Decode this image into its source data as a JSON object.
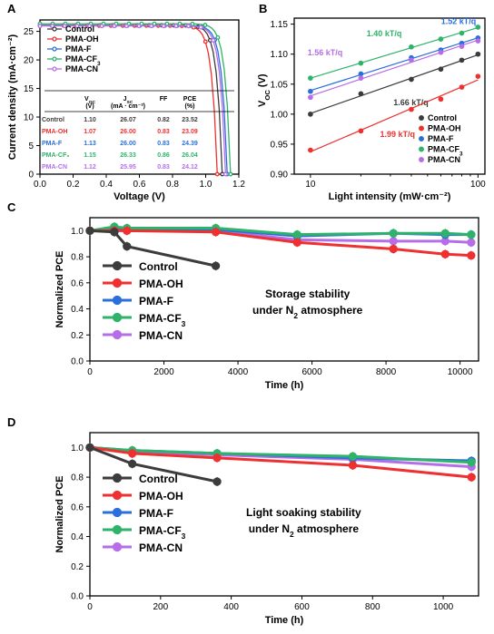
{
  "colors": {
    "Control": "#3c3c3c",
    "PMA-OH": "#ee3030",
    "PMA-F": "#2a6fdc",
    "PMA-CF3": "#2fb36a",
    "PMA-CN": "#b56ee8"
  },
  "chart_data": [
    {
      "panel": "A",
      "type": "line",
      "xlabel": "Voltage (V)",
      "ylabel": "Current density (mA·cm⁻²)",
      "xlim": [
        0.0,
        1.2
      ],
      "ylim": [
        0,
        27
      ],
      "xticks": [
        "0.0",
        "0.2",
        "0.4",
        "0.6",
        "0.8",
        "1.0",
        "1.2"
      ],
      "yticks": [
        "0",
        "5",
        "10",
        "15",
        "20",
        "25"
      ],
      "legend_position": "top-left",
      "series": [
        {
          "name": "Control",
          "voc": 1.1,
          "jsc": 26.07
        },
        {
          "name": "PMA-OH",
          "voc": 1.07,
          "jsc": 26.0
        },
        {
          "name": "PMA-F",
          "voc": 1.13,
          "jsc": 26.0
        },
        {
          "name": "PMA-CF3",
          "voc": 1.15,
          "jsc": 26.33
        },
        {
          "name": "PMA-CN",
          "voc": 1.12,
          "jsc": 25.95
        }
      ],
      "table": {
        "headers": [
          "V_OC (V)",
          "J_SC (mA · cm⁻²)",
          "FF",
          "PCE (%)"
        ],
        "rows": [
          {
            "name": "Control",
            "voc": "1.10",
            "jsc": "26.07",
            "ff": "0.82",
            "pce": "23.52"
          },
          {
            "name": "PMA-OH",
            "voc": "1.07",
            "jsc": "26.00",
            "ff": "0.83",
            "pce": "23.09"
          },
          {
            "name": "PMA-F",
            "voc": "1.13",
            "jsc": "26.00",
            "ff": "0.83",
            "pce": "24.39"
          },
          {
            "name": "PMA-CF₃",
            "voc": "1.15",
            "jsc": "26.33",
            "ff": "0.86",
            "pce": "26.04"
          },
          {
            "name": "PMA-CN",
            "voc": "1.12",
            "jsc": "25.95",
            "ff": "0.83",
            "pce": "24.12"
          }
        ]
      }
    },
    {
      "panel": "B",
      "type": "scatter",
      "xlabel": "Light intensity (mW·cm⁻²)",
      "ylabel": "V_OC (V)",
      "xscale": "log",
      "xlim": [
        8,
        110
      ],
      "ylim": [
        0.9,
        1.16
      ],
      "xticks": [
        "10",
        "100"
      ],
      "yticks": [
        "0.90",
        "0.95",
        "1.00",
        "1.05",
        "1.10",
        "1.15"
      ],
      "legend_position": "bottom-right",
      "x": [
        10,
        20,
        40,
        60,
        80,
        100
      ],
      "series": [
        {
          "name": "Control",
          "values": [
            1.0,
            1.034,
            1.058,
            1.075,
            1.09,
            1.1
          ],
          "slope_label": "1.66 kT/q"
        },
        {
          "name": "PMA-OH",
          "values": [
            0.94,
            0.972,
            1.008,
            1.025,
            1.045,
            1.063
          ],
          "slope_label": "1.99 kT/q"
        },
        {
          "name": "PMA-F",
          "values": [
            1.038,
            1.067,
            1.094,
            1.107,
            1.118,
            1.127
          ],
          "slope_label": "1.52 kT/q"
        },
        {
          "name": "PMA-CF3",
          "values": [
            1.06,
            1.085,
            1.112,
            1.125,
            1.135,
            1.145
          ],
          "slope_label": "1.40 kT/q"
        },
        {
          "name": "PMA-CN",
          "values": [
            1.028,
            1.06,
            1.09,
            1.103,
            1.113,
            1.122
          ],
          "slope_label": "1.56 kT/q"
        }
      ]
    },
    {
      "panel": "C",
      "type": "line",
      "xlabel": "Time (h)",
      "ylabel": "Normalized PCE",
      "xlim": [
        0,
        10500
      ],
      "ylim": [
        0,
        1.1
      ],
      "xticks": [
        "0",
        "2000",
        "4000",
        "6000",
        "8000",
        "10000"
      ],
      "yticks": [
        "0.0",
        "0.2",
        "0.4",
        "0.6",
        "0.8",
        "1.0"
      ],
      "legend_position": "middle-left",
      "annotation": [
        "Storage stability",
        "under N₂ atmosphere"
      ],
      "series": [
        {
          "name": "Control",
          "x": [
            0,
            660,
            1000,
            3400
          ],
          "values": [
            1.0,
            0.99,
            0.88,
            0.73
          ]
        },
        {
          "name": "PMA-OH",
          "x": [
            0,
            660,
            1000,
            3400,
            5600,
            8200,
            9600,
            10300
          ],
          "values": [
            1.0,
            1.0,
            1.0,
            0.99,
            0.91,
            0.86,
            0.82,
            0.81
          ]
        },
        {
          "name": "PMA-F",
          "x": [
            0,
            660,
            1000,
            3400,
            5600,
            8200,
            9600,
            10300
          ],
          "values": [
            1.0,
            1.02,
            1.01,
            1.01,
            0.96,
            0.98,
            0.97,
            0.97
          ]
        },
        {
          "name": "PMA-CF3",
          "x": [
            0,
            660,
            1000,
            3400,
            5600,
            8200,
            9600,
            10300
          ],
          "values": [
            1.0,
            1.03,
            1.02,
            1.02,
            0.97,
            0.98,
            0.98,
            0.97
          ]
        },
        {
          "name": "PMA-CN",
          "x": [
            0,
            660,
            1000,
            3400,
            5600,
            8200,
            9600,
            10300
          ],
          "values": [
            1.0,
            1.01,
            1.0,
            1.0,
            0.93,
            0.92,
            0.92,
            0.91
          ]
        }
      ]
    },
    {
      "panel": "D",
      "type": "line",
      "xlabel": "Time (h)",
      "ylabel": "Normalized PCE",
      "xlim": [
        0,
        1100
      ],
      "ylim": [
        0,
        1.1
      ],
      "xticks": [
        "0",
        "200",
        "400",
        "600",
        "800",
        "1000"
      ],
      "yticks": [
        "0.0",
        "0.2",
        "0.4",
        "0.6",
        "0.8",
        "1.0"
      ],
      "legend_position": "middle-left",
      "annotation": [
        "Light soaking stability",
        "under N₂ atmosphere"
      ],
      "series": [
        {
          "name": "Control",
          "x": [
            0,
            120,
            360
          ],
          "values": [
            1.0,
            0.89,
            0.77
          ]
        },
        {
          "name": "PMA-OH",
          "x": [
            0,
            120,
            360,
            744,
            1080
          ],
          "values": [
            1.0,
            0.96,
            0.93,
            0.88,
            0.8
          ]
        },
        {
          "name": "PMA-F",
          "x": [
            0,
            120,
            360,
            744,
            1080
          ],
          "values": [
            1.0,
            0.98,
            0.96,
            0.93,
            0.91
          ]
        },
        {
          "name": "PMA-CF3",
          "x": [
            0,
            120,
            360,
            744,
            1080
          ],
          "values": [
            1.0,
            0.98,
            0.96,
            0.94,
            0.9
          ]
        },
        {
          "name": "PMA-CN",
          "x": [
            0,
            120,
            360,
            744,
            1080
          ],
          "values": [
            1.0,
            0.97,
            0.95,
            0.92,
            0.87
          ]
        }
      ]
    }
  ]
}
